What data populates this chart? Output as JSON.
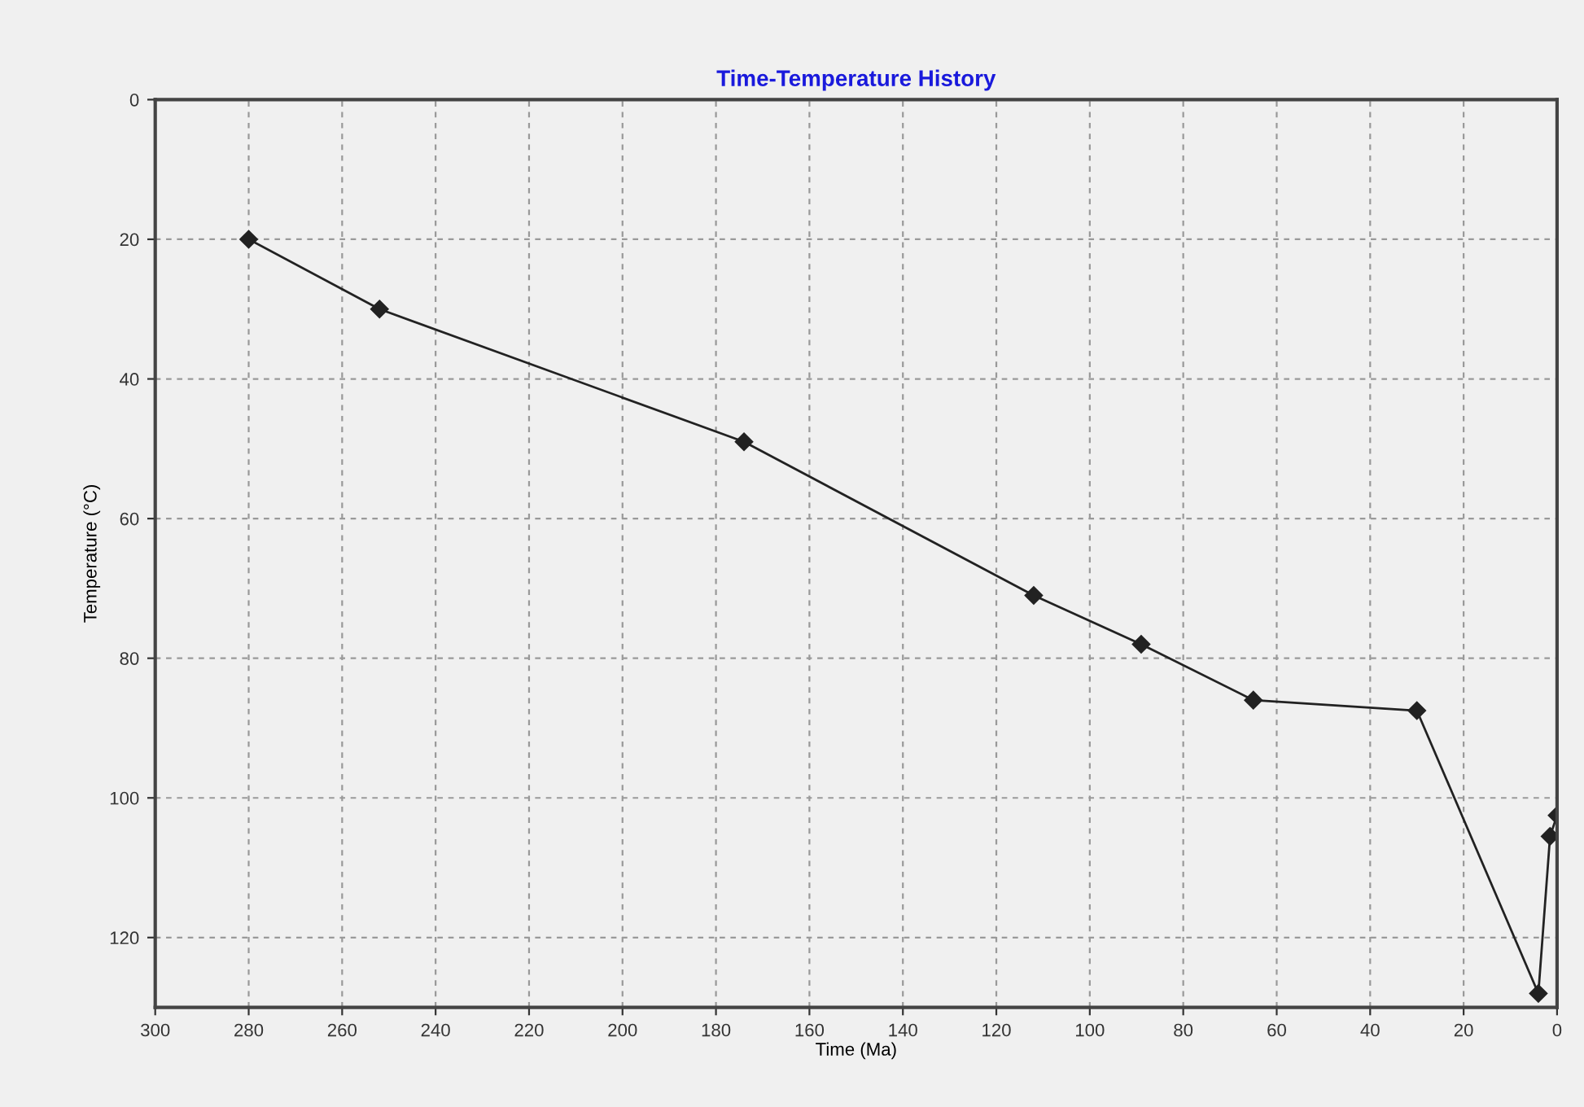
{
  "chart_data": {
    "type": "line",
    "title": "Time-Temperature History",
    "xlabel": "Time (Ma)",
    "ylabel": "Temperature (°C)",
    "x": [
      280,
      252,
      174,
      112,
      89,
      65,
      30,
      4,
      1.5,
      0
    ],
    "series": [
      {
        "color": "#222222",
        "values": [
          20,
          30,
          49,
          71,
          78,
          86,
          87.5,
          128,
          105.5,
          102.5
        ]
      }
    ],
    "xlim": [
      300,
      0
    ],
    "xticks": [
      300,
      280,
      260,
      240,
      220,
      200,
      180,
      160,
      140,
      120,
      100,
      80,
      60,
      40,
      20,
      0
    ],
    "ylim": [
      130,
      0
    ],
    "yticks": [
      0,
      20,
      40,
      60,
      80,
      100,
      120
    ],
    "grid": true,
    "marker": "diamond",
    "line_style": "solid",
    "legend": false
  }
}
